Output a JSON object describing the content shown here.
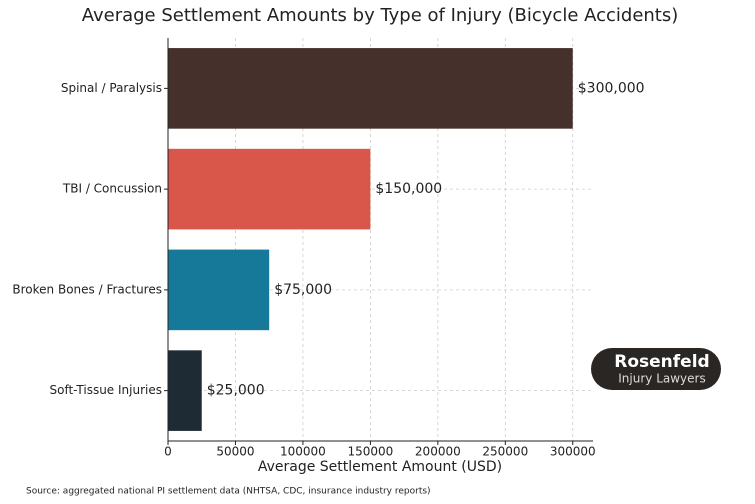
{
  "chart_data": {
    "type": "hbar",
    "title": "Average Settlement Amounts by Type of Injury (Bicycle Accidents)",
    "xlabel": "Average Settlement Amount (USD)",
    "categories": [
      "Spinal / Paralysis",
      "TBI / Concussion",
      "Broken Bones / Fractures",
      "Soft-Tissue Injuries"
    ],
    "values": [
      300000,
      150000,
      75000,
      25000
    ],
    "value_labels": [
      "$300,000",
      "$150,000",
      "$75,000",
      "$25,000"
    ],
    "colors": [
      "#45302b",
      "#d9574a",
      "#17799a",
      "#1e2b35"
    ],
    "xlim": [
      0,
      315000
    ],
    "xticks": [
      0,
      50000,
      100000,
      150000,
      200000,
      250000,
      300000
    ],
    "grid": true,
    "source": "Source:  aggregated national PI settlement data (NHTSA, CDC, insurance industry reports)",
    "logo": {
      "name": "Rosenfeld",
      "tagline": "Injury Lawyers"
    }
  }
}
